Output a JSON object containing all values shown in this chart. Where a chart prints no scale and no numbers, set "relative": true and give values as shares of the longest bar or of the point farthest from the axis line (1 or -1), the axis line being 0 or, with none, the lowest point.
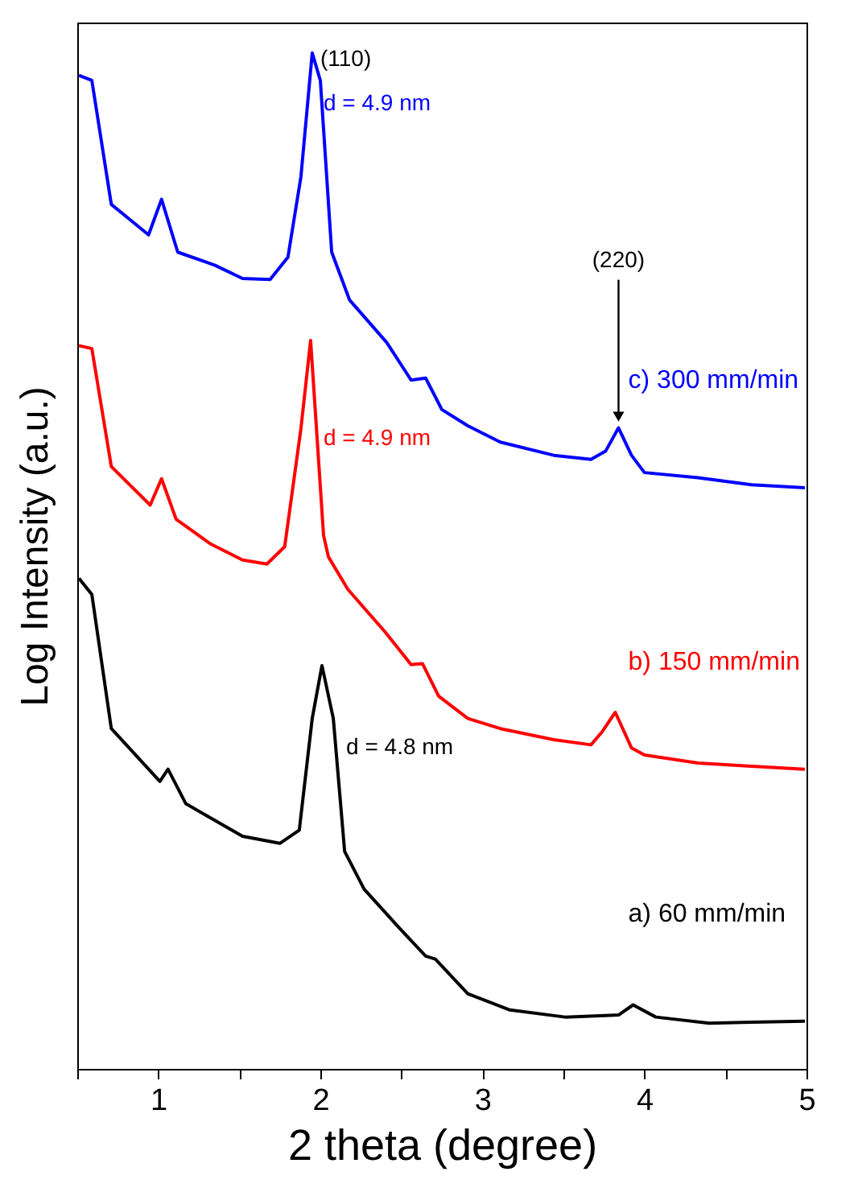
{
  "chart_data": {
    "type": "line",
    "xlabel": "2 theta (degree)",
    "ylabel": "Log Intensity (a.u.)",
    "relative": true,
    "grid": false,
    "xlim": [
      0.5,
      5
    ],
    "xticks": [
      {
        "value": 0.5,
        "label": null
      },
      1,
      {
        "value": 1.5,
        "label": null
      },
      2,
      {
        "value": 2.5,
        "label": null
      },
      3,
      {
        "value": 3.5,
        "label": null
      },
      4,
      {
        "value": 4.5,
        "label": null
      },
      5
    ],
    "series": [
      {
        "name": "c) 300 mm/min",
        "color": "#0000ff",
        "x": [
          0.51,
          0.59,
          0.71,
          0.94,
          1.02,
          1.12,
          1.35,
          1.52,
          1.69,
          1.8,
          1.88,
          1.95,
          2.0,
          2.07,
          2.18,
          2.41,
          2.56,
          2.65,
          2.75,
          2.91,
          3.11,
          3.44,
          3.67,
          3.76,
          3.84,
          3.92,
          4.0,
          4.33,
          4.66,
          4.99
        ],
        "values": [
          0.978,
          0.973,
          0.851,
          0.821,
          0.856,
          0.804,
          0.791,
          0.778,
          0.777,
          0.799,
          0.878,
          1.0,
          0.973,
          0.804,
          0.757,
          0.715,
          0.678,
          0.68,
          0.649,
          0.633,
          0.617,
          0.604,
          0.6,
          0.608,
          0.631,
          0.604,
          0.587,
          0.582,
          0.575,
          0.572
        ]
      },
      {
        "name": "b) 150 mm/min",
        "color": "#ff0000",
        "x": [
          0.51,
          0.59,
          0.71,
          0.95,
          1.02,
          1.11,
          1.32,
          1.52,
          1.67,
          1.78,
          1.88,
          1.94,
          2.02,
          2.05,
          2.17,
          2.4,
          2.56,
          2.63,
          2.73,
          2.91,
          3.11,
          3.44,
          3.67,
          3.74,
          3.82,
          3.92,
          4.0,
          4.33,
          4.66,
          4.99
        ],
        "values": [
          0.712,
          0.709,
          0.593,
          0.555,
          0.581,
          0.541,
          0.517,
          0.501,
          0.497,
          0.514,
          0.63,
          0.717,
          0.525,
          0.504,
          0.472,
          0.43,
          0.398,
          0.399,
          0.367,
          0.345,
          0.335,
          0.324,
          0.319,
          0.332,
          0.351,
          0.316,
          0.309,
          0.301,
          0.298,
          0.295
        ]
      },
      {
        "name": "a) 60 mm/min",
        "color": "#000000",
        "x": [
          0.51,
          0.59,
          0.71,
          1.01,
          1.06,
          1.17,
          1.52,
          1.75,
          1.87,
          1.95,
          2.01,
          2.08,
          2.15,
          2.27,
          2.48,
          2.65,
          2.71,
          2.91,
          3.17,
          3.51,
          3.84,
          3.93,
          4.07,
          4.4,
          4.66,
          4.99
        ],
        "values": [
          0.483,
          0.467,
          0.335,
          0.283,
          0.295,
          0.261,
          0.229,
          0.222,
          0.235,
          0.345,
          0.397,
          0.345,
          0.214,
          0.177,
          0.14,
          0.111,
          0.108,
          0.074,
          0.058,
          0.051,
          0.053,
          0.063,
          0.051,
          0.045,
          0.046,
          0.047
        ]
      }
    ],
    "annotations": [
      {
        "text": "(110)",
        "x": 1.95,
        "y": 0.99
      },
      {
        "text": "d = 4.9 nm",
        "x": 1.96,
        "y": 0.95
      },
      {
        "text": "d = 4.9 nm",
        "x": 1.96,
        "y": 0.62
      },
      {
        "text": "d = 4.8 nm",
        "x": 2.08,
        "y": 0.316
      },
      {
        "text": "(220)",
        "x": 3.84,
        "y": 0.631
      }
    ]
  }
}
